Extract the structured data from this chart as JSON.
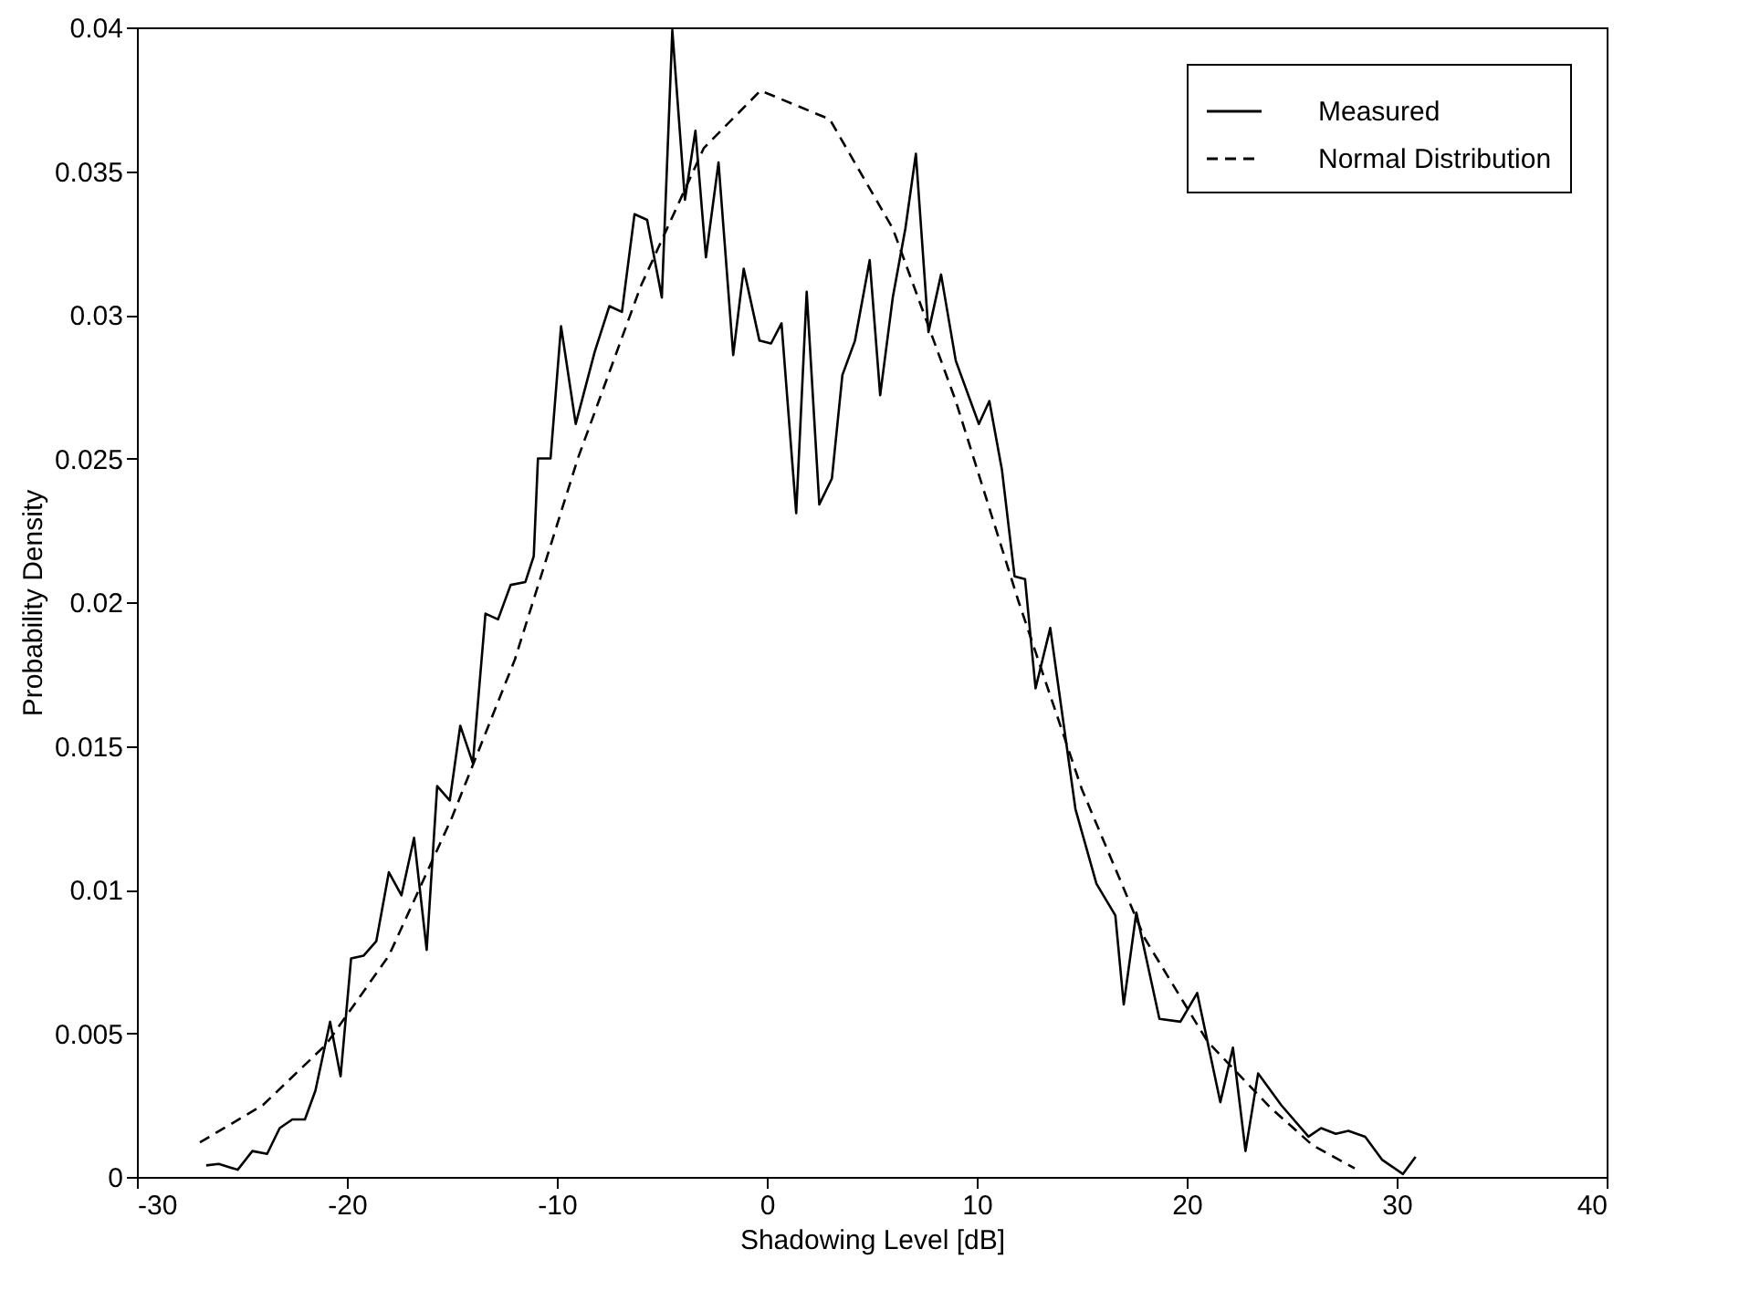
{
  "chart_data": {
    "type": "line",
    "xlabel": "Shadowing Level [dB]",
    "ylabel": "Probability Density",
    "xlim": [
      -30,
      40
    ],
    "xticks": [
      -30,
      -20,
      -10,
      0,
      10,
      20,
      30,
      40
    ],
    "ylim": [
      0,
      0.04
    ],
    "yticks": [
      0,
      0.005,
      0.01,
      0.015,
      0.02,
      0.025,
      0.03,
      0.035,
      0.04
    ],
    "grid": false,
    "legend": "top right",
    "series": [
      {
        "name": "Measured",
        "color": "#000000",
        "line_style": "solid",
        "x": [
          -26.7,
          -26.1,
          -25.2,
          -24.5,
          -23.8,
          -23.2,
          -22.6,
          -22.0,
          -21.5,
          -20.8,
          -20.3,
          -19.8,
          -19.2,
          -18.6,
          -18.0,
          -17.4,
          -16.8,
          -16.2,
          -15.7,
          -15.1,
          -14.6,
          -14.0,
          -13.4,
          -12.8,
          -12.2,
          -11.5,
          -11.1,
          -10.9,
          -10.3,
          -9.8,
          -9.1,
          -8.2,
          -7.5,
          -6.9,
          -6.3,
          -5.7,
          -5.0,
          -4.5,
          -3.9,
          -3.4,
          -2.9,
          -2.3,
          -1.6,
          -1.1,
          -0.35,
          0.2,
          0.7,
          1.4,
          1.9,
          2.5,
          3.1,
          3.6,
          4.2,
          4.9,
          5.4,
          6.0,
          6.6,
          7.1,
          7.7,
          8.3,
          9.0,
          10.1,
          10.6,
          11.2,
          11.8,
          12.3,
          12.8,
          13.5,
          14.7,
          15.7,
          16.6,
          17.0,
          17.6,
          18.7,
          19.7,
          20.5,
          21.6,
          22.2,
          22.8,
          23.4,
          24.5,
          25.8,
          26.4,
          27.1,
          27.7,
          28.5,
          29.3,
          30.3,
          30.9
        ],
        "values": [
          0.0004,
          0.00045,
          0.00025,
          0.0009,
          0.0008,
          0.0017,
          0.002,
          0.002,
          0.003,
          0.0054,
          0.0035,
          0.0076,
          0.0077,
          0.0082,
          0.0106,
          0.0098,
          0.0118,
          0.0079,
          0.0136,
          0.0131,
          0.0157,
          0.0144,
          0.0196,
          0.0194,
          0.0206,
          0.0207,
          0.0216,
          0.025,
          0.025,
          0.0296,
          0.0262,
          0.0287,
          0.0303,
          0.0301,
          0.0335,
          0.0333,
          0.0306,
          0.0399,
          0.034,
          0.0364,
          0.032,
          0.0353,
          0.0286,
          0.0316,
          0.0291,
          0.029,
          0.0297,
          0.0231,
          0.0308,
          0.0234,
          0.0243,
          0.0279,
          0.0291,
          0.0319,
          0.0272,
          0.0306,
          0.033,
          0.0356,
          0.0294,
          0.0314,
          0.0284,
          0.0262,
          0.027,
          0.0246,
          0.0209,
          0.0208,
          0.017,
          0.0191,
          0.0128,
          0.0102,
          0.0091,
          0.006,
          0.0092,
          0.0055,
          0.0054,
          0.0064,
          0.0026,
          0.0045,
          0.0009,
          0.0036,
          0.0025,
          0.0014,
          0.0017,
          0.0015,
          0.0016,
          0.0014,
          0.0006,
          0.0001,
          0.0007
        ]
      },
      {
        "name": "Normal Distribution",
        "color": "#000000",
        "line_style": "dashed",
        "x": [
          -27,
          -24,
          -21,
          -18,
          -15,
          -12,
          -9,
          -6,
          -3,
          -0.3,
          3,
          6,
          9,
          12,
          15,
          18,
          21,
          24,
          26,
          28
        ],
        "values": [
          0.0012,
          0.0025,
          0.0046,
          0.0077,
          0.0125,
          0.018,
          0.025,
          0.031,
          0.0358,
          0.0378,
          0.0368,
          0.033,
          0.027,
          0.02,
          0.0135,
          0.0083,
          0.0047,
          0.0024,
          0.0011,
          0.0003
        ]
      }
    ]
  }
}
